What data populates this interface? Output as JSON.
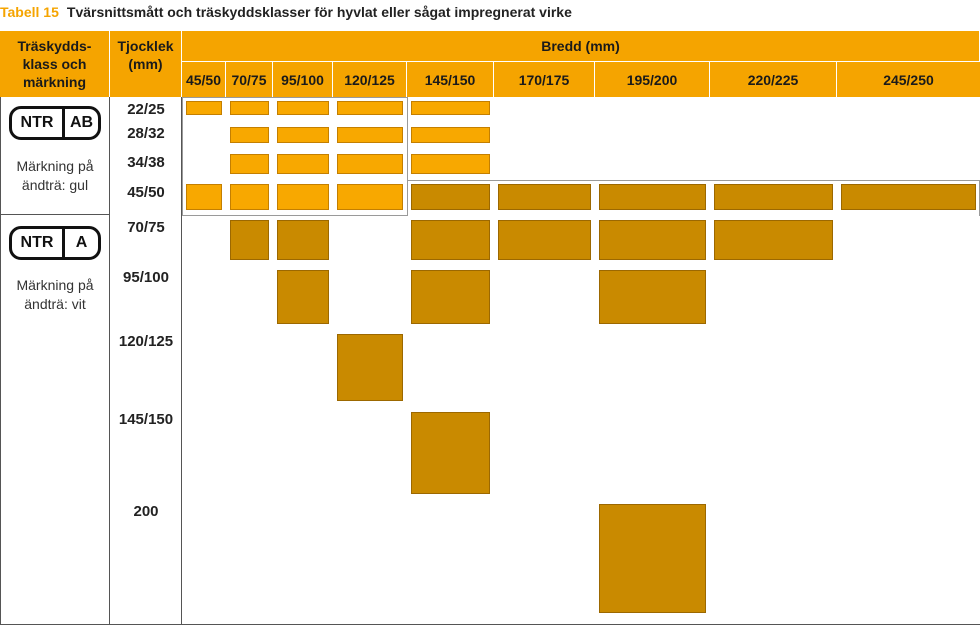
{
  "title": {
    "number": "Tabell 15",
    "text": "Tvärsnittsmått och träskyddsklasser för hyvlat eller sågat impregnerat virke"
  },
  "header": {
    "class_label": "Träskydds-\nklass och\nmärkning",
    "thickness_label": "Tjocklek\n(mm)",
    "width_label": "Bredd (mm)",
    "widths": [
      "45/50",
      "70/75",
      "95/100",
      "120/125",
      "145/150",
      "170/175",
      "195/200",
      "220/225",
      "245/250"
    ]
  },
  "classes": [
    {
      "code_left": "NTR",
      "code_right": "AB",
      "note": "Märkning på\nändträ: gul",
      "color": "#f8a800"
    },
    {
      "code_left": "NTR",
      "code_right": "A",
      "note": "Märkning på\nändträ: vit",
      "color": "#c98a00"
    }
  ],
  "thicknesses": [
    "22/25",
    "28/32",
    "34/38",
    "45/50",
    "70/75",
    "95/100",
    "120/125",
    "145/150",
    "200"
  ],
  "cells": [
    {
      "thickness": "22/25",
      "width": "45/50",
      "class": "AB"
    },
    {
      "thickness": "22/25",
      "width": "70/75",
      "class": "AB"
    },
    {
      "thickness": "22/25",
      "width": "95/100",
      "class": "AB"
    },
    {
      "thickness": "22/25",
      "width": "120/125",
      "class": "AB"
    },
    {
      "thickness": "22/25",
      "width": "145/150",
      "class": "AB"
    },
    {
      "thickness": "28/32",
      "width": "70/75",
      "class": "AB"
    },
    {
      "thickness": "28/32",
      "width": "95/100",
      "class": "AB"
    },
    {
      "thickness": "28/32",
      "width": "120/125",
      "class": "AB"
    },
    {
      "thickness": "28/32",
      "width": "145/150",
      "class": "AB"
    },
    {
      "thickness": "34/38",
      "width": "70/75",
      "class": "AB"
    },
    {
      "thickness": "34/38",
      "width": "95/100",
      "class": "AB"
    },
    {
      "thickness": "34/38",
      "width": "120/125",
      "class": "AB"
    },
    {
      "thickness": "34/38",
      "width": "145/150",
      "class": "AB"
    },
    {
      "thickness": "45/50",
      "width": "45/50",
      "class": "AB"
    },
    {
      "thickness": "45/50",
      "width": "70/75",
      "class": "AB"
    },
    {
      "thickness": "45/50",
      "width": "95/100",
      "class": "AB"
    },
    {
      "thickness": "45/50",
      "width": "120/125",
      "class": "AB"
    },
    {
      "thickness": "45/50",
      "width": "145/150",
      "class": "A"
    },
    {
      "thickness": "45/50",
      "width": "170/175",
      "class": "A"
    },
    {
      "thickness": "45/50",
      "width": "195/200",
      "class": "A"
    },
    {
      "thickness": "45/50",
      "width": "220/225",
      "class": "A"
    },
    {
      "thickness": "45/50",
      "width": "245/250",
      "class": "A"
    },
    {
      "thickness": "70/75",
      "width": "70/75",
      "class": "A"
    },
    {
      "thickness": "70/75",
      "width": "95/100",
      "class": "A"
    },
    {
      "thickness": "70/75",
      "width": "145/150",
      "class": "A"
    },
    {
      "thickness": "70/75",
      "width": "170/175",
      "class": "A"
    },
    {
      "thickness": "70/75",
      "width": "195/200",
      "class": "A"
    },
    {
      "thickness": "70/75",
      "width": "220/225",
      "class": "A"
    },
    {
      "thickness": "95/100",
      "width": "95/100",
      "class": "A"
    },
    {
      "thickness": "95/100",
      "width": "145/150",
      "class": "A"
    },
    {
      "thickness": "95/100",
      "width": "195/200",
      "class": "A"
    },
    {
      "thickness": "120/125",
      "width": "120/125",
      "class": "A"
    },
    {
      "thickness": "145/150",
      "width": "145/150",
      "class": "A"
    },
    {
      "thickness": "200",
      "width": "195/200",
      "class": "A"
    }
  ]
}
